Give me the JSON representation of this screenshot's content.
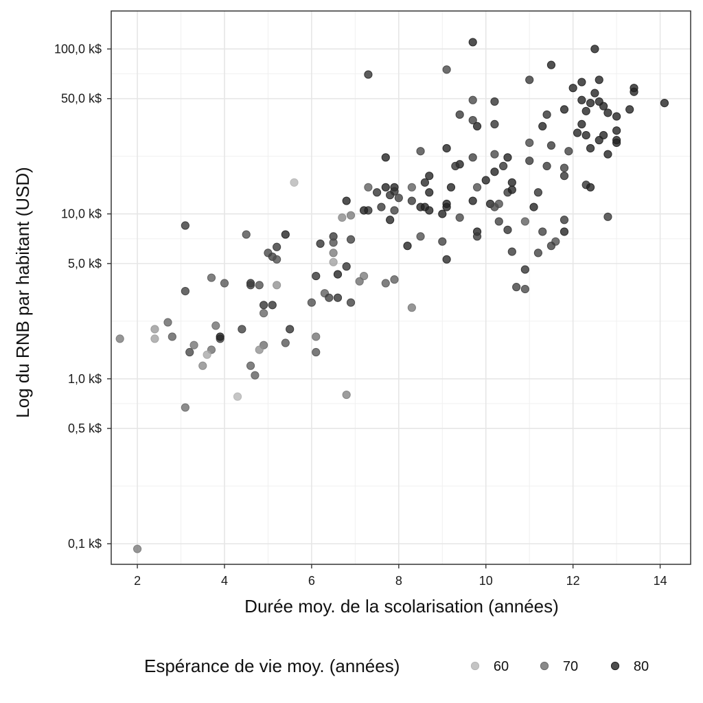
{
  "chart_data": {
    "type": "scatter",
    "xlabel": "Durée moy. de la scolarisation (années)",
    "ylabel": "Log du RNB par habitant (USD)",
    "x_scale": "linear",
    "y_scale": "log",
    "xlim": [
      1.4,
      14.7
    ],
    "ylim": [
      0.075,
      170
    ],
    "x_ticks": [
      2,
      4,
      6,
      8,
      10,
      12,
      14
    ],
    "x_tick_labels": [
      "2",
      "4",
      "6",
      "8",
      "10",
      "12",
      "14"
    ],
    "y_ticks": [
      0.1,
      0.5,
      1,
      5,
      10,
      50,
      100
    ],
    "y_tick_labels": [
      "0,1 k$",
      "0,5 k$",
      "1,0 k$",
      "5,0 k$",
      "10,0 k$",
      "50,0 k$",
      "100,0 k$"
    ],
    "grid": true,
    "legend": {
      "title": "Espérance de vie moy. (années)",
      "placement": "bottom",
      "items": [
        {
          "label": "60",
          "value": 60
        },
        {
          "label": "70",
          "value": 70
        },
        {
          "label": "80",
          "value": 80
        }
      ]
    },
    "colors": {
      "life_low": "#c4c4c4",
      "life_high": "#111111",
      "grid": "#e6e6e6",
      "border": "#333333"
    },
    "series": [
      {
        "columns": [
          "x",
          "y",
          "life"
        ],
        "points": [
          [
            9.7,
            110,
            80
          ],
          [
            12.5,
            100,
            80
          ],
          [
            11.5,
            80,
            80
          ],
          [
            9.1,
            75,
            75
          ],
          [
            7.3,
            70,
            78
          ],
          [
            11.0,
            65,
            77
          ],
          [
            12.6,
            65,
            80
          ],
          [
            12.2,
            63,
            80
          ],
          [
            12.0,
            58,
            80
          ],
          [
            13.4,
            58,
            80
          ],
          [
            13.4,
            55,
            80
          ],
          [
            12.5,
            54,
            80
          ],
          [
            14.1,
            47,
            80
          ],
          [
            12.2,
            49,
            80
          ],
          [
            12.6,
            48,
            80
          ],
          [
            12.4,
            47,
            80
          ],
          [
            12.7,
            45,
            80
          ],
          [
            9.7,
            49,
            75
          ],
          [
            10.2,
            48,
            78
          ],
          [
            12.3,
            42,
            80
          ],
          [
            13.3,
            43,
            80
          ],
          [
            11.8,
            43,
            80
          ],
          [
            12.8,
            41,
            80
          ],
          [
            13.0,
            39,
            80
          ],
          [
            11.4,
            40,
            78
          ],
          [
            9.4,
            40,
            77
          ],
          [
            9.7,
            37,
            76
          ],
          [
            10.2,
            35,
            78
          ],
          [
            9.8,
            34,
            80
          ],
          [
            11.3,
            34,
            80
          ],
          [
            12.2,
            35,
            80
          ],
          [
            12.1,
            31,
            80
          ],
          [
            12.3,
            30,
            80
          ],
          [
            12.7,
            30,
            80
          ],
          [
            13.0,
            32,
            80
          ],
          [
            13.0,
            28,
            80
          ],
          [
            12.6,
            28,
            80
          ],
          [
            13.0,
            27,
            80
          ],
          [
            11.0,
            27,
            75
          ],
          [
            9.1,
            25,
            80
          ],
          [
            11.5,
            26,
            77
          ],
          [
            12.4,
            25,
            80
          ],
          [
            11.9,
            24,
            76
          ],
          [
            12.8,
            23,
            80
          ],
          [
            8.5,
            24,
            75
          ],
          [
            10.2,
            23,
            75
          ],
          [
            10.5,
            22,
            80
          ],
          [
            7.7,
            22,
            80
          ],
          [
            9.7,
            22,
            76
          ],
          [
            11.0,
            21,
            77
          ],
          [
            9.4,
            20,
            80
          ],
          [
            9.3,
            19.5,
            78
          ],
          [
            10.4,
            19.5,
            78
          ],
          [
            11.4,
            19.5,
            77
          ],
          [
            11.8,
            19,
            76
          ],
          [
            10.2,
            18,
            80
          ],
          [
            11.8,
            17,
            78
          ],
          [
            8.7,
            17,
            80
          ],
          [
            10.0,
            16,
            80
          ],
          [
            8.6,
            15.5,
            79
          ],
          [
            10.6,
            15.5,
            80
          ],
          [
            12.3,
            15,
            78
          ],
          [
            12.4,
            14.5,
            80
          ],
          [
            9.8,
            14.5,
            74
          ],
          [
            5.6,
            15.5,
            60
          ],
          [
            7.3,
            14.5,
            72
          ],
          [
            7.7,
            14.5,
            80
          ],
          [
            8.3,
            14.5,
            72
          ],
          [
            7.9,
            14.5,
            80
          ],
          [
            7.9,
            13.7,
            78
          ],
          [
            9.2,
            14.5,
            80
          ],
          [
            10.5,
            13.5,
            77
          ],
          [
            10.6,
            14,
            80
          ],
          [
            11.2,
            13.5,
            78
          ],
          [
            8.7,
            13.5,
            80
          ],
          [
            7.8,
            13,
            78
          ],
          [
            7.5,
            13.5,
            78
          ],
          [
            8.0,
            12.5,
            76
          ],
          [
            8.3,
            12,
            77
          ],
          [
            6.8,
            12,
            80
          ],
          [
            9.7,
            12,
            80
          ],
          [
            10.1,
            11.5,
            80
          ],
          [
            10.2,
            11,
            75
          ],
          [
            10.3,
            11.5,
            74
          ],
          [
            8.5,
            11,
            80
          ],
          [
            8.6,
            11,
            80
          ],
          [
            9.1,
            11,
            80
          ],
          [
            9.1,
            11.5,
            80
          ],
          [
            11.1,
            11,
            80
          ],
          [
            7.6,
            11,
            77
          ],
          [
            8.7,
            10.5,
            80
          ],
          [
            7.3,
            10.5,
            78
          ],
          [
            7.2,
            10.5,
            80
          ],
          [
            7.9,
            10.5,
            76
          ],
          [
            9.0,
            10,
            80
          ],
          [
            6.9,
            9.8,
            68
          ],
          [
            6.7,
            9.5,
            66
          ],
          [
            9.4,
            9.5,
            75
          ],
          [
            7.8,
            9.2,
            80
          ],
          [
            12.8,
            9.6,
            77
          ],
          [
            10.3,
            9,
            76
          ],
          [
            10.9,
            9,
            72
          ],
          [
            11.8,
            9.2,
            77
          ],
          [
            3.1,
            8.5,
            77
          ],
          [
            5.4,
            7.5,
            80
          ],
          [
            4.5,
            7.5,
            74
          ],
          [
            6.5,
            7.3,
            77
          ],
          [
            10.5,
            8,
            78
          ],
          [
            11.3,
            7.8,
            76
          ],
          [
            11.8,
            7.8,
            80
          ],
          [
            8.5,
            7.3,
            74
          ],
          [
            9.8,
            7.8,
            80
          ],
          [
            9.8,
            7.3,
            77
          ],
          [
            6.9,
            7,
            76
          ],
          [
            9.0,
            6.8,
            76
          ],
          [
            11.6,
            6.8,
            74
          ],
          [
            6.5,
            6.7,
            74
          ],
          [
            6.2,
            6.6,
            78
          ],
          [
            11.5,
            6.4,
            76
          ],
          [
            8.2,
            6.4,
            80
          ],
          [
            5.2,
            6.3,
            77
          ],
          [
            5.0,
            5.8,
            75
          ],
          [
            10.6,
            5.9,
            77
          ],
          [
            11.2,
            5.8,
            76
          ],
          [
            6.5,
            5.8,
            68
          ],
          [
            9.1,
            5.3,
            79
          ],
          [
            5.1,
            5.5,
            76
          ],
          [
            5.2,
            5.3,
            74
          ],
          [
            6.5,
            5.1,
            63
          ],
          [
            6.8,
            4.8,
            78
          ],
          [
            10.9,
            4.6,
            78
          ],
          [
            6.6,
            4.3,
            80
          ],
          [
            6.1,
            4.2,
            78
          ],
          [
            7.2,
            4.2,
            68
          ],
          [
            7.1,
            3.9,
            70
          ],
          [
            7.7,
            3.8,
            72
          ],
          [
            7.9,
            4.0,
            72
          ],
          [
            3.7,
            4.1,
            72
          ],
          [
            4.0,
            3.8,
            73
          ],
          [
            4.6,
            3.8,
            78
          ],
          [
            4.6,
            3.7,
            76
          ],
          [
            4.8,
            3.7,
            74
          ],
          [
            5.2,
            3.7,
            65
          ],
          [
            10.7,
            3.6,
            76
          ],
          [
            10.9,
            3.5,
            75
          ],
          [
            3.1,
            3.4,
            76
          ],
          [
            6.3,
            3.3,
            72
          ],
          [
            6.4,
            3.1,
            76
          ],
          [
            6.6,
            3.1,
            78
          ],
          [
            6.9,
            2.9,
            76
          ],
          [
            6.0,
            2.9,
            74
          ],
          [
            4.9,
            2.8,
            78
          ],
          [
            5.1,
            2.8,
            78
          ],
          [
            8.3,
            2.7,
            68
          ],
          [
            4.9,
            2.5,
            71
          ],
          [
            2.7,
            2.2,
            71
          ],
          [
            3.8,
            2.1,
            70
          ],
          [
            4.4,
            2.0,
            76
          ],
          [
            5.5,
            2.0,
            78
          ],
          [
            2.4,
            2.0,
            64
          ],
          [
            2.4,
            1.75,
            63
          ],
          [
            1.6,
            1.75,
            68
          ],
          [
            2.8,
            1.8,
            72
          ],
          [
            3.9,
            1.75,
            76
          ],
          [
            3.9,
            1.8,
            80
          ],
          [
            6.1,
            1.8,
            69
          ],
          [
            5.4,
            1.65,
            73
          ],
          [
            3.3,
            1.6,
            69
          ],
          [
            4.9,
            1.6,
            70
          ],
          [
            3.2,
            1.45,
            75
          ],
          [
            3.7,
            1.5,
            70
          ],
          [
            4.8,
            1.5,
            65
          ],
          [
            6.1,
            1.45,
            73
          ],
          [
            3.6,
            1.4,
            62
          ],
          [
            3.5,
            1.2,
            66
          ],
          [
            4.6,
            1.2,
            72
          ],
          [
            4.7,
            1.05,
            72
          ],
          [
            4.3,
            0.78,
            60
          ],
          [
            6.8,
            0.8,
            67
          ],
          [
            3.1,
            0.67,
            70
          ],
          [
            2.0,
            0.093,
            68
          ]
        ]
      }
    ]
  }
}
